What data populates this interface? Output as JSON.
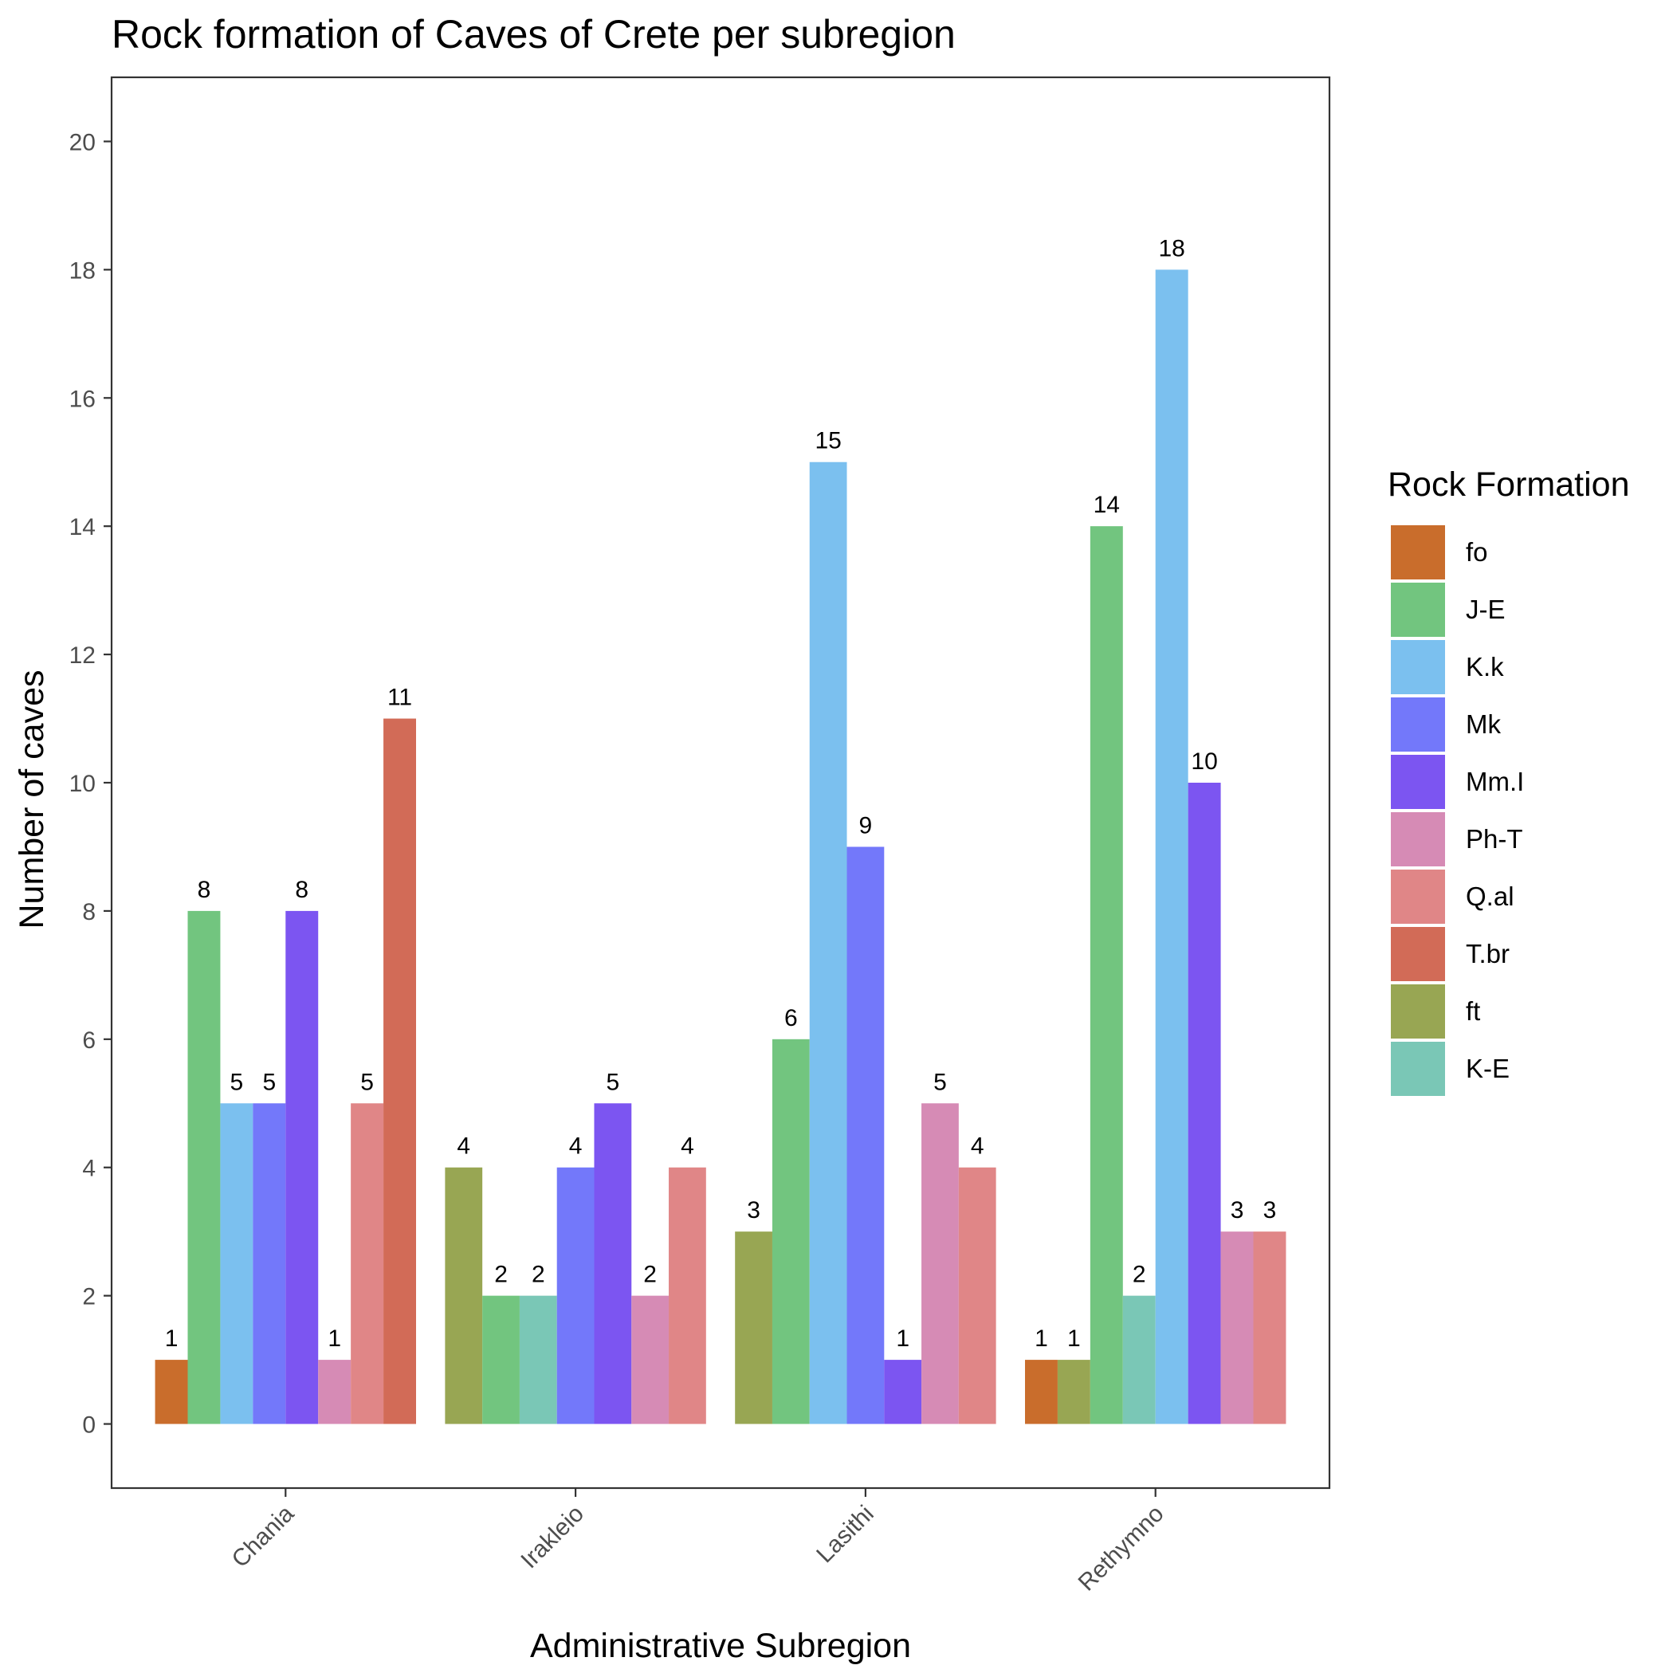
{
  "chart_data": {
    "type": "bar",
    "title": "Rock formation of Caves of Crete per subregion",
    "xlabel": "Administrative Subregion",
    "ylabel": "Number of caves",
    "ylim": [
      -1,
      21
    ],
    "yticks": [
      0,
      2,
      4,
      6,
      8,
      10,
      12,
      14,
      16,
      18,
      20
    ],
    "grid": false,
    "legend_title": "Rock Formation",
    "legend_position": "right",
    "categories": [
      "Chania",
      "Irakleio",
      "Lasithi",
      "Rethymno"
    ],
    "series": [
      {
        "name": "fo",
        "color": "#C96D2C",
        "values": [
          1,
          null,
          null,
          1
        ]
      },
      {
        "name": "J-E",
        "color": "#72C57F",
        "values": [
          8,
          2,
          6,
          14
        ]
      },
      {
        "name": "K.k",
        "color": "#7BC0EF",
        "values": [
          5,
          null,
          15,
          18
        ]
      },
      {
        "name": "Mk",
        "color": "#7378FA",
        "values": [
          5,
          4,
          9,
          null
        ]
      },
      {
        "name": "Mm.I",
        "color": "#7C55F1",
        "values": [
          8,
          5,
          1,
          10
        ]
      },
      {
        "name": "Ph-T",
        "color": "#D68BB5",
        "values": [
          1,
          2,
          5,
          3
        ]
      },
      {
        "name": "Q.al",
        "color": "#E08687",
        "values": [
          5,
          4,
          4,
          3
        ]
      },
      {
        "name": "T.br",
        "color": "#D26B57",
        "values": [
          11,
          null,
          null,
          null
        ]
      },
      {
        "name": "ft",
        "color": "#98A653",
        "values": [
          null,
          4,
          3,
          1
        ]
      },
      {
        "name": "K-E",
        "color": "#7AC7B6",
        "values": [
          null,
          2,
          null,
          2
        ]
      }
    ],
    "bar_order": [
      [
        "fo",
        "J-E",
        "K.k",
        "Mk",
        "Mm.I",
        "Ph-T",
        "Q.al",
        "T.br"
      ],
      [
        "ft",
        "J-E",
        "K-E",
        "Mk",
        "Mm.I",
        "Ph-T",
        "Q.al"
      ],
      [
        "ft",
        "J-E",
        "K.k",
        "Mk",
        "Mm.I",
        "Ph-T",
        "Q.al"
      ],
      [
        "fo",
        "ft",
        "J-E",
        "K-E",
        "K.k",
        "Mm.I",
        "Ph-T",
        "Q.al"
      ]
    ]
  }
}
